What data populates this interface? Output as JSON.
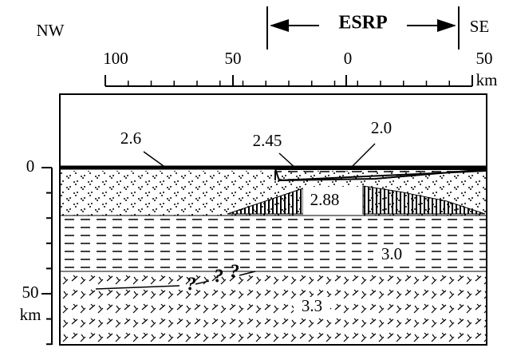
{
  "header": {
    "left_direction": "NW",
    "right_direction": "SE",
    "province": "ESRP"
  },
  "top_axis": {
    "ticks": [
      "100",
      "50",
      "0",
      "50"
    ],
    "unit": "km"
  },
  "left_axis": {
    "ticks": [
      "0",
      "50"
    ],
    "unit": "km"
  },
  "layers": {
    "labels": [
      "2.6",
      "2.45",
      "2.0",
      "2.88",
      "3.0",
      "3.3"
    ]
  },
  "question_marks": [
    "?",
    "?",
    "?"
  ]
}
